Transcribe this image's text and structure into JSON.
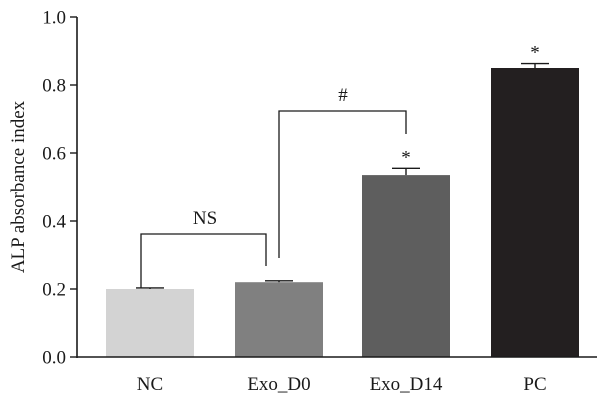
{
  "chart_data": {
    "type": "bar",
    "title": "",
    "xlabel": "",
    "ylabel": "ALP absorbance index",
    "ylim": [
      0,
      1.0
    ],
    "yticks": [
      "0.0",
      "0.2",
      "0.4",
      "0.6",
      "0.8",
      "1.0"
    ],
    "categories": [
      "NC",
      "Exo_D0",
      "Exo_D14",
      "PC"
    ],
    "values": [
      0.2,
      0.22,
      0.535,
      0.85
    ],
    "errors": [
      0.003,
      0.004,
      0.02,
      0.013
    ],
    "colors": [
      "#d3d3d3",
      "#808080",
      "#5e5e5e",
      "#231f20"
    ],
    "bar_markers": [
      "",
      "",
      "*",
      "*"
    ],
    "comparisons": [
      {
        "label": "NS",
        "from": 0,
        "to": 1
      },
      {
        "label": "#",
        "from": 1,
        "to": 2
      }
    ],
    "grid": false,
    "legend": "none"
  }
}
